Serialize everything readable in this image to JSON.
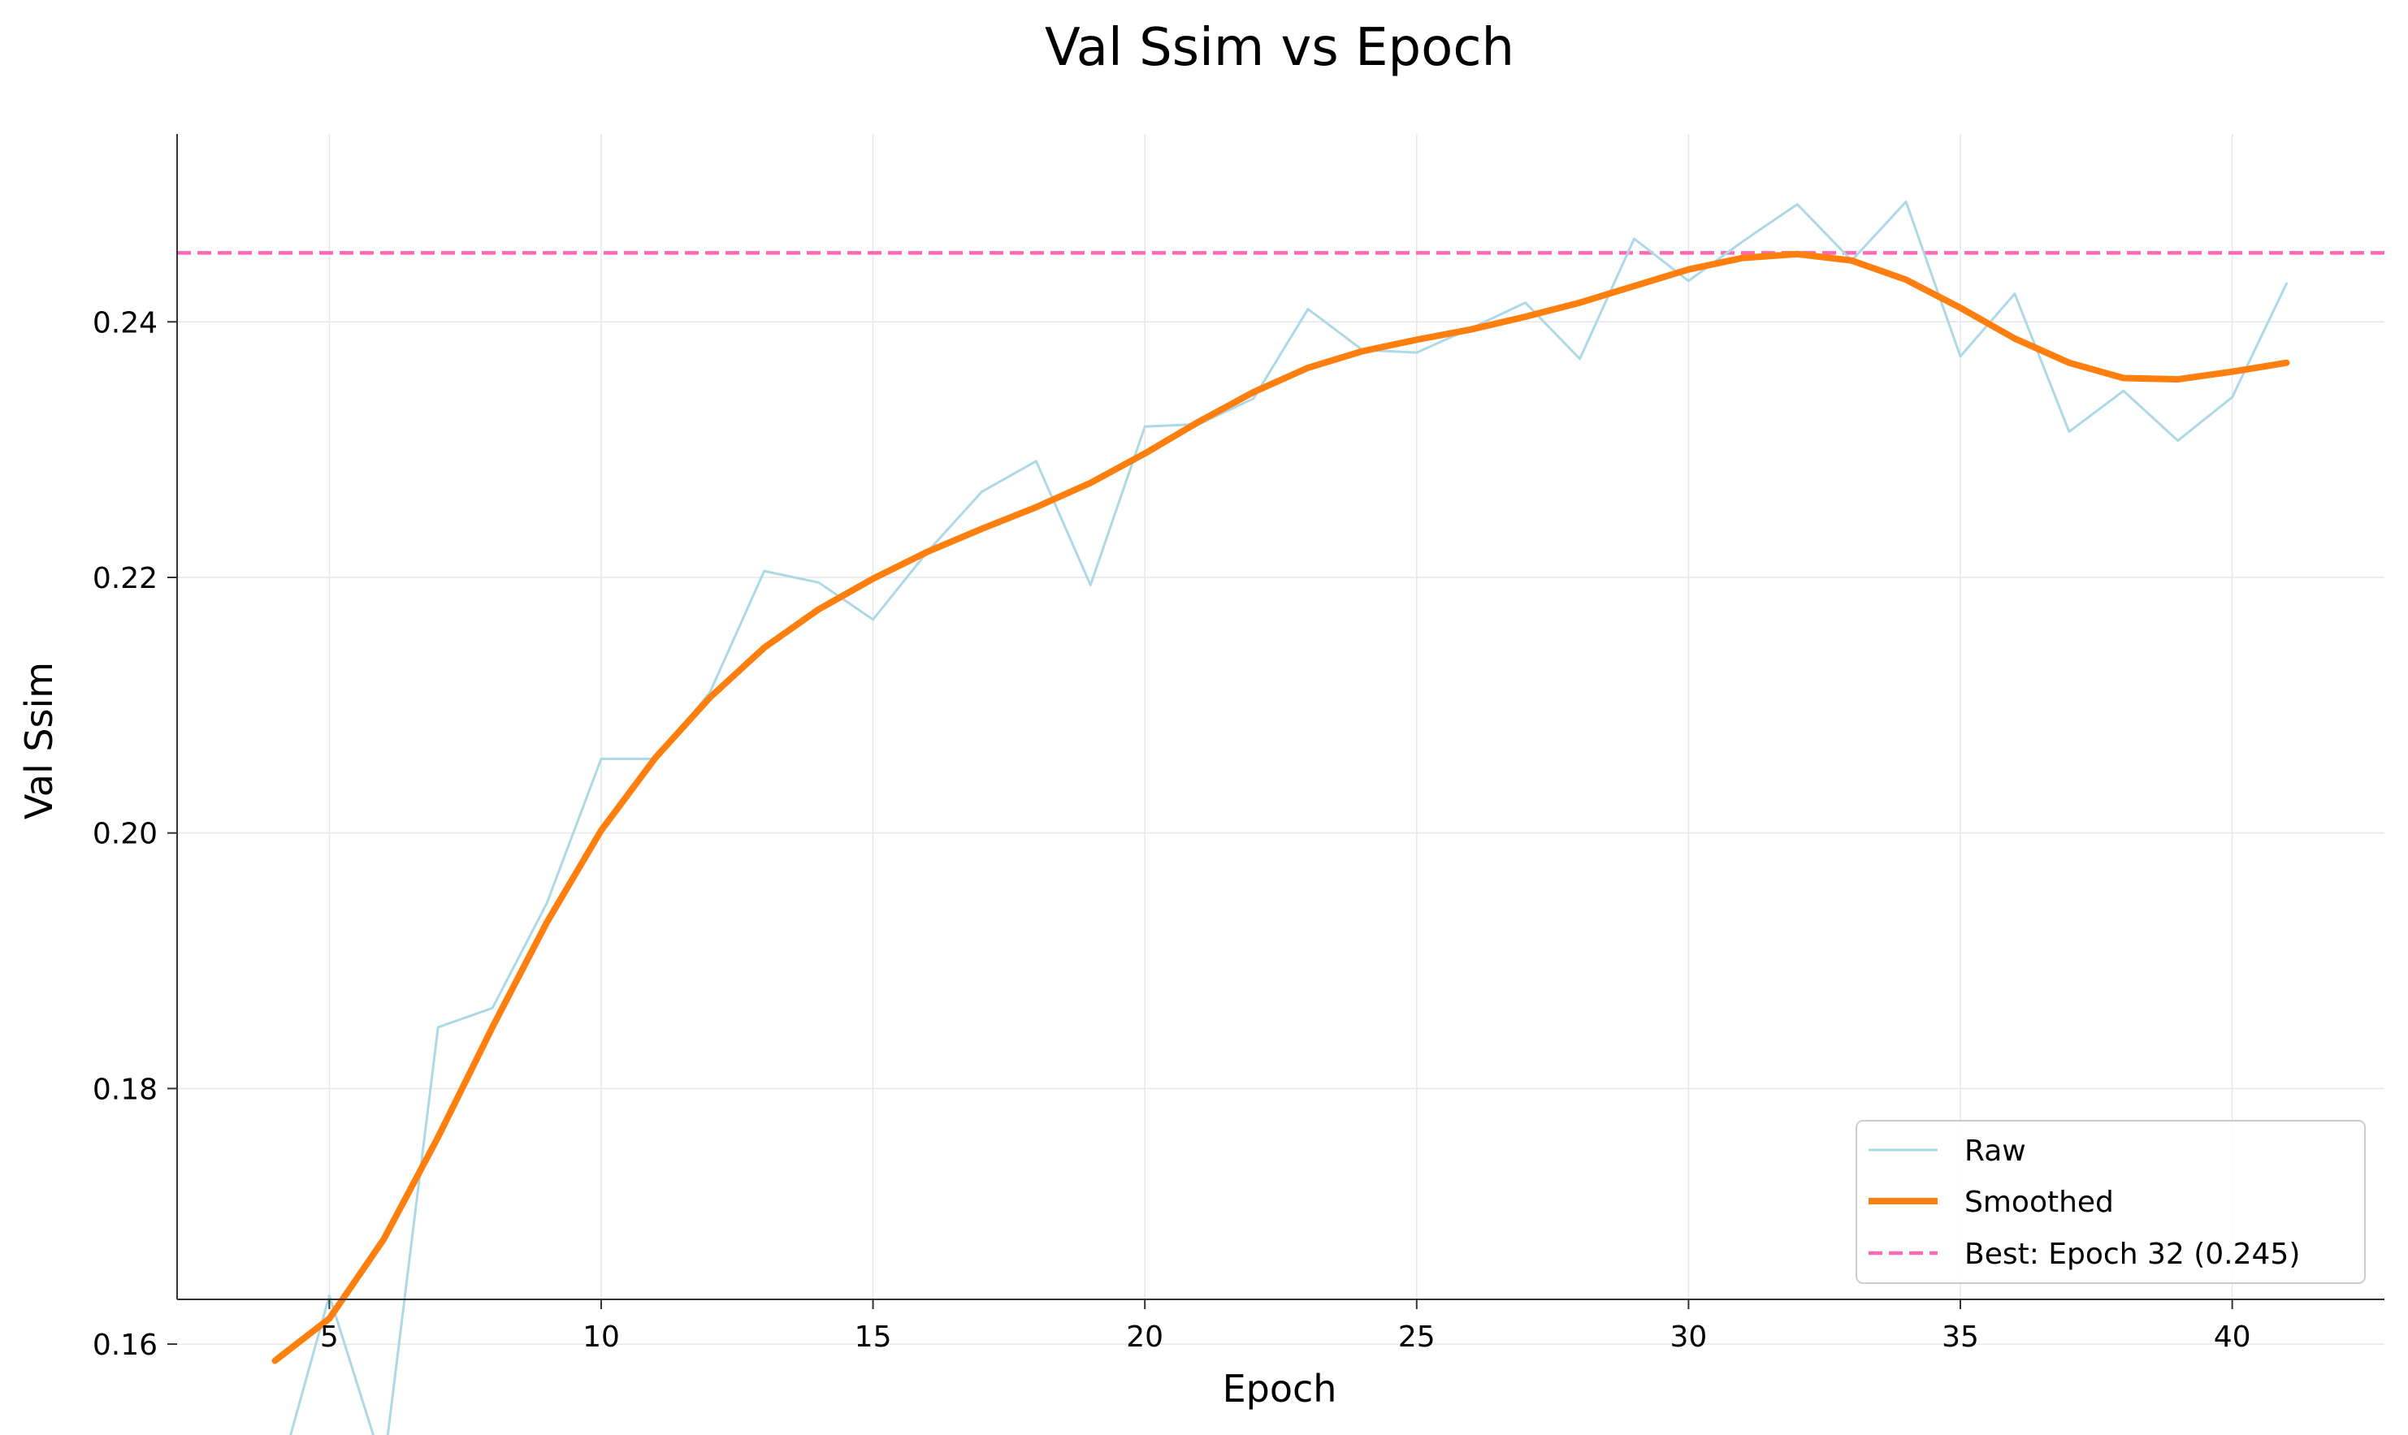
{
  "chart_data": {
    "type": "line",
    "title": "Val Ssim vs Epoch",
    "xlabel": "Epoch",
    "ylabel": "Val Ssim",
    "xlim": [
      2.2,
      42.8
    ],
    "ylim": [
      0.1635,
      0.2547
    ],
    "xticks": [
      5,
      10,
      15,
      20,
      25,
      30,
      35,
      40
    ],
    "yticks": [
      0.16,
      0.18,
      0.2,
      0.22,
      0.24
    ],
    "ytick_labels": [
      "0.16",
      "0.18",
      "0.20",
      "0.22",
      "0.24"
    ],
    "grid": true,
    "legend_position": "lower-right",
    "x": [
      4,
      5,
      6,
      7,
      8,
      9,
      10,
      11,
      12,
      13,
      14,
      15,
      16,
      17,
      18,
      19,
      20,
      21,
      22,
      23,
      24,
      25,
      26,
      27,
      28,
      29,
      30,
      31,
      32,
      33,
      34,
      35,
      36,
      37,
      38,
      39,
      40,
      41
    ],
    "series": [
      {
        "name": "Raw",
        "color": "#add8e6",
        "values": [
          0.1485,
          0.1638,
          0.1503,
          0.1848,
          0.1863,
          0.1945,
          0.2058,
          0.2058,
          0.211,
          0.2205,
          0.2196,
          0.2167,
          0.222,
          0.2267,
          0.2291,
          0.2194,
          0.2318,
          0.232,
          0.234,
          0.241,
          0.2378,
          0.2376,
          0.2395,
          0.2415,
          0.2371,
          0.2465,
          0.2432,
          0.2463,
          0.2492,
          0.2448,
          0.2494,
          0.2373,
          0.2422,
          0.2314,
          0.2346,
          0.2307,
          0.2341,
          0.243
        ]
      },
      {
        "name": "Smoothed",
        "color": "#ff7f0e",
        "values": [
          0.1587,
          0.162,
          0.1682,
          0.1762,
          0.1848,
          0.193,
          0.2002,
          0.2059,
          0.2106,
          0.2145,
          0.2175,
          0.2199,
          0.222,
          0.2238,
          0.2255,
          0.2274,
          0.2297,
          0.2322,
          0.2345,
          0.2364,
          0.2377,
          0.2386,
          0.2394,
          0.2404,
          0.2415,
          0.2428,
          0.2441,
          0.245,
          0.2453,
          0.2448,
          0.2433,
          0.2411,
          0.2387,
          0.2368,
          0.2356,
          0.2355,
          0.2361,
          0.2368
        ]
      }
    ],
    "best_line": {
      "label": "Best: Epoch 32 (0.245)",
      "epoch": 32,
      "value": 0.2454,
      "color": "#ff69b4"
    }
  }
}
